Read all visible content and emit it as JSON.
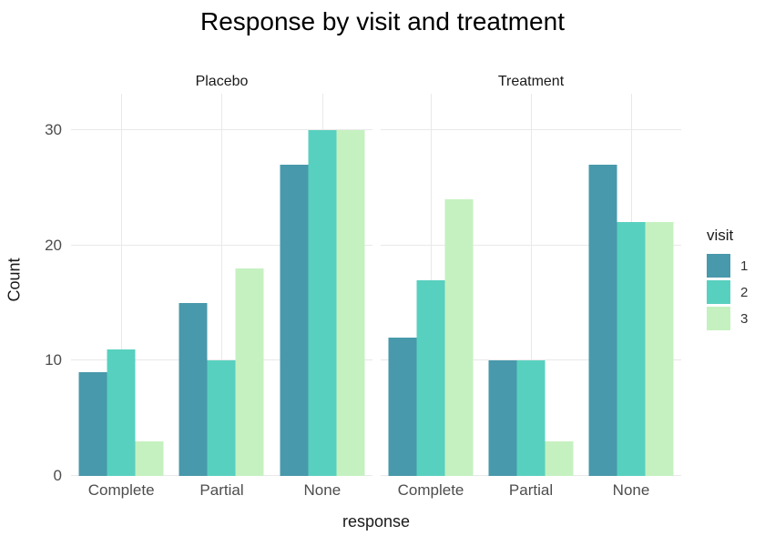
{
  "title": "Response by visit and treatment",
  "axes": {
    "y_title": "Count",
    "x_title": "response",
    "y_ticks": [
      0,
      10,
      20,
      30
    ],
    "x_categories": [
      "Complete",
      "Partial",
      "None"
    ]
  },
  "legend": {
    "title": "visit",
    "entries": [
      {
        "label": "1",
        "color": "#4899ab"
      },
      {
        "label": "2",
        "color": "#58d0bf"
      },
      {
        "label": "3",
        "color": "#c5f1c0"
      }
    ]
  },
  "facets": [
    {
      "label": "Placebo"
    },
    {
      "label": "Treatment"
    }
  ],
  "colors": {
    "background": "#ffffff",
    "gridline": "#e9e9e9",
    "axis_text": "#4d4d4d",
    "title_text": "#000000"
  },
  "chart_data": {
    "type": "bar",
    "title": "Response by visit and treatment",
    "xlabel": "response",
    "ylabel": "Count",
    "ylim": [
      0,
      33
    ],
    "y_ticks": [
      0,
      10,
      20,
      30
    ],
    "grid": true,
    "legend_title": "visit",
    "legend_position": "right",
    "categories": [
      "Complete",
      "Partial",
      "None"
    ],
    "facets": [
      {
        "name": "Placebo",
        "series": [
          {
            "name": "1",
            "color": "#4899ab",
            "values": [
              9,
              15,
              27
            ]
          },
          {
            "name": "2",
            "color": "#58d0bf",
            "values": [
              11,
              10,
              30
            ]
          },
          {
            "name": "3",
            "color": "#c5f1c0",
            "values": [
              3,
              18,
              30
            ]
          }
        ]
      },
      {
        "name": "Treatment",
        "series": [
          {
            "name": "1",
            "color": "#4899ab",
            "values": [
              12,
              10,
              27
            ]
          },
          {
            "name": "2",
            "color": "#58d0bf",
            "values": [
              17,
              10,
              22
            ]
          },
          {
            "name": "3",
            "color": "#c5f1c0",
            "values": [
              24,
              3,
              22
            ]
          }
        ]
      }
    ]
  }
}
